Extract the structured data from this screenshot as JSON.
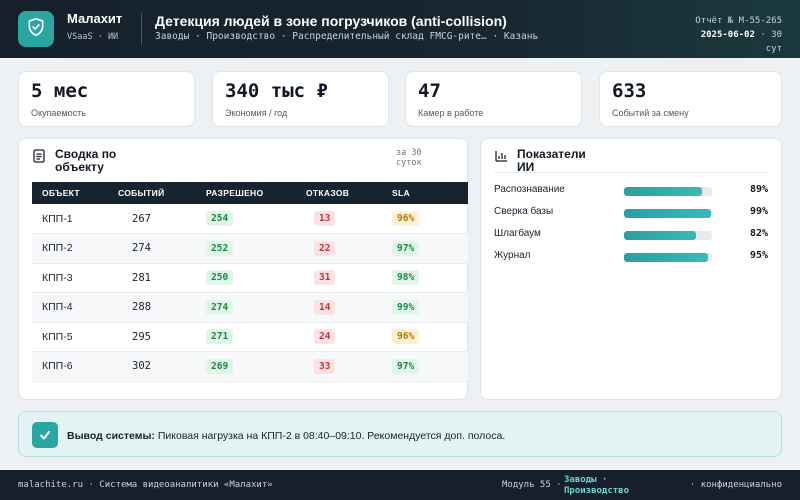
{
  "header": {
    "brand_name": "Малахит",
    "brand_tag": "VSaaS · ИИ",
    "title": "Детекция людей в зоне погрузчиков (anti-collision)",
    "breadcrumb": "Заводы · Производство · Распределительный склад FMCG-рите… · Казань",
    "report_number": "Отчёт № M-55-265",
    "report_date": "2025-06-02",
    "report_period": "· 30 сут",
    "logo_icon": "shield-check-icon"
  },
  "kpis": [
    {
      "value": "5 мес",
      "label": "Окупаемость"
    },
    {
      "value": "340 тыс ₽",
      "label": "Экономия / год"
    },
    {
      "value": "47",
      "label": "Камер в работе"
    },
    {
      "value": "633",
      "label": "Событий за смену"
    }
  ],
  "summary": {
    "title": "Сводка по объекту",
    "period": "за 30 суток",
    "icon": "document-icon",
    "columns": [
      "ОБЪЕКТ",
      "СОБЫТИЙ",
      "РАЗРЕШЕНО",
      "ОТКАЗОВ",
      "SLA"
    ],
    "rows": [
      {
        "object": "КПП-1",
        "events": "267",
        "allowed": "254",
        "denied": "13",
        "sla": "96%",
        "sla_status": "warn"
      },
      {
        "object": "КПП-2",
        "events": "274",
        "allowed": "252",
        "denied": "22",
        "sla": "97%",
        "sla_status": "ok"
      },
      {
        "object": "КПП-3",
        "events": "281",
        "allowed": "250",
        "denied": "31",
        "sla": "98%",
        "sla_status": "ok"
      },
      {
        "object": "КПП-4",
        "events": "288",
        "allowed": "274",
        "denied": "14",
        "sla": "99%",
        "sla_status": "ok"
      },
      {
        "object": "КПП-5",
        "events": "295",
        "allowed": "271",
        "denied": "24",
        "sla": "96%",
        "sla_status": "warn"
      },
      {
        "object": "КПП-6",
        "events": "302",
        "allowed": "269",
        "denied": "33",
        "sla": "97%",
        "sla_status": "ok"
      }
    ]
  },
  "ai_metrics": {
    "title": "Показатели ИИ",
    "icon": "bar-chart-icon",
    "items": [
      {
        "label": "Распознавание",
        "value": "89%",
        "level": 0.89
      },
      {
        "label": "Сверка базы",
        "value": "99%",
        "level": 0.99
      },
      {
        "label": "Шлагбаум",
        "value": "82%",
        "level": 0.82
      },
      {
        "label": "Журнал",
        "value": "95%",
        "level": 0.95
      }
    ]
  },
  "conclusion": {
    "label": "Вывод системы:",
    "text": "Пиковая нагрузка на КПП-2 в 08:40–09:10. Рекомендуется доп. полоса.",
    "icon": "check-icon"
  },
  "footer": {
    "left": "malachite.ru · Система видеоаналитики «Малахит»",
    "module": "Модуль 55 ·",
    "link": "Заводы · Производство",
    "right": "· конфиденциально"
  },
  "colors": {
    "accent": "#2ba7a3",
    "header_bg": "#15202b",
    "ok": "#1b8a45",
    "bad": "#c83434",
    "warn": "#b87900"
  }
}
